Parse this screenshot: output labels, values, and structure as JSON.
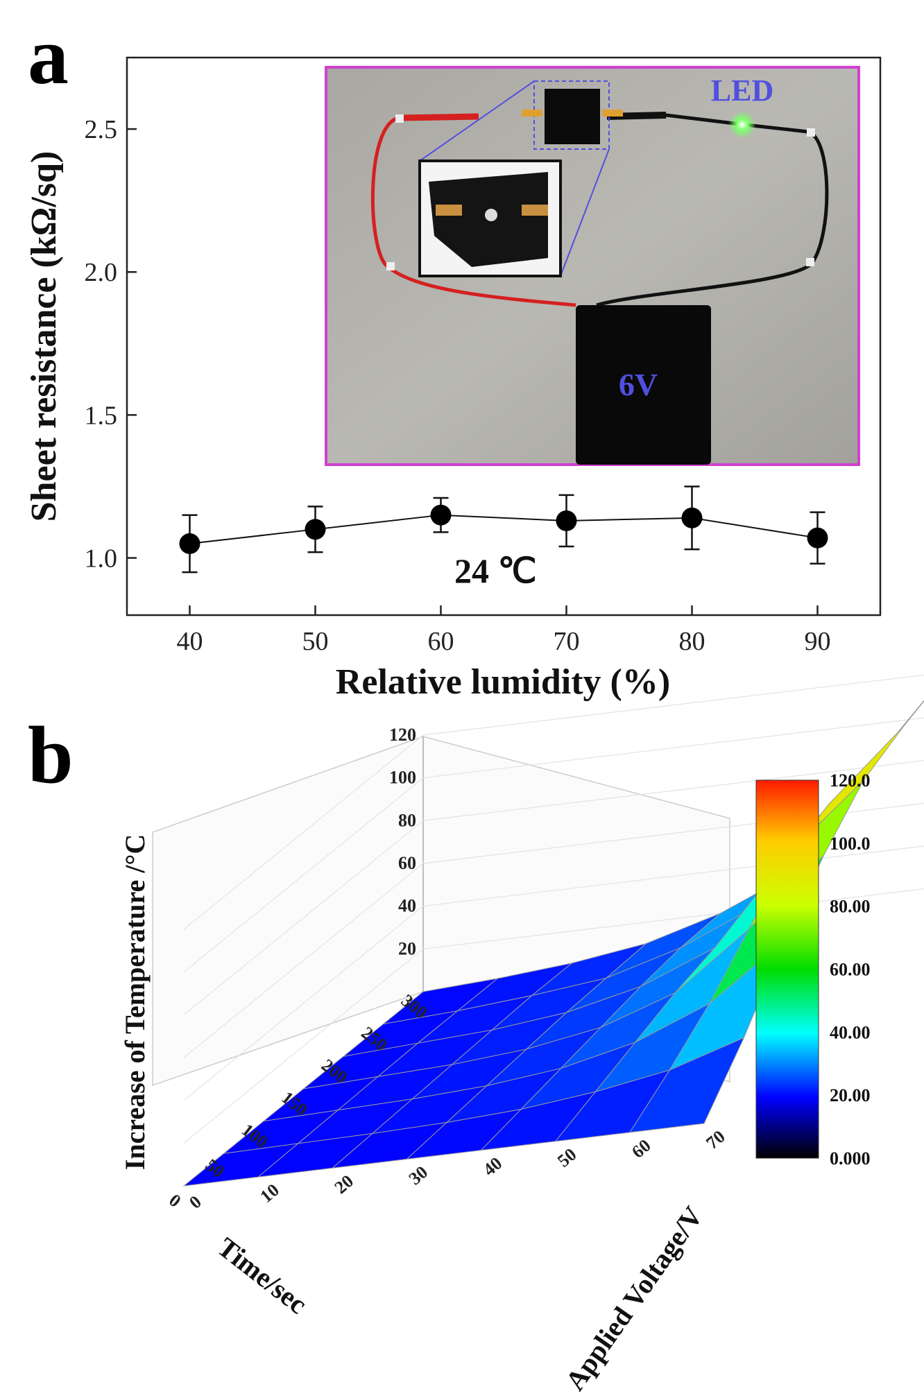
{
  "panels": {
    "a": "a",
    "b": "b"
  },
  "chart_data": [
    {
      "type": "scatter",
      "panel": "a",
      "x": [
        40,
        50,
        60,
        70,
        80,
        90
      ],
      "y": [
        1.05,
        1.1,
        1.15,
        1.13,
        1.14,
        1.07
      ],
      "y_err": [
        0.1,
        0.08,
        0.06,
        0.09,
        0.11,
        0.09
      ],
      "xlabel": "Relative lumidity (%)",
      "ylabel": "Sheet resistance (kΩ/sq)",
      "xlim": [
        35,
        95
      ],
      "ylim": [
        0.8,
        2.75
      ],
      "x_ticks": [
        "40",
        "50",
        "60",
        "70",
        "80",
        "90"
      ],
      "y_ticks": [
        "1.0",
        "1.5",
        "2.0",
        "2.5"
      ],
      "annotation": "24 ℃",
      "connected": true,
      "inset_photo": {
        "labels": {
          "led": "LED",
          "battery": "6V"
        },
        "colors": {
          "border": "#d040d0",
          "led_label": "#5050e0",
          "battery_label": "#5050e0",
          "wire_positive": "#d42020",
          "wire_negative": "#111111",
          "led_glow": "#7dff6a"
        }
      }
    },
    {
      "type": "surface",
      "panel": "b",
      "x_label": "Time/sec",
      "y_label": "Applied Voltage/V",
      "z_label": "Increase of Temperature /°C",
      "x_ticks": [
        "0",
        "50",
        "100",
        "150",
        "200",
        "250",
        "300"
      ],
      "y_ticks": [
        "0",
        "10",
        "20",
        "30",
        "40",
        "50",
        "60",
        "70"
      ],
      "z_ticks": [
        "20",
        "40",
        "60",
        "80",
        "100",
        "120"
      ],
      "z_range": [
        0,
        120
      ],
      "colorbar": {
        "ticks": [
          "120.0",
          "100.0",
          "80.00",
          "60.00",
          "40.00",
          "20.00",
          "0.000"
        ],
        "colors": [
          "#ff1a00",
          "#ffcc00",
          "#ccff00",
          "#00dd00",
          "#00ffff",
          "#0000ff",
          "#000000"
        ]
      },
      "time": [
        0,
        50,
        100,
        150,
        200,
        250,
        300
      ],
      "voltage": [
        0,
        10,
        20,
        30,
        40,
        50,
        60,
        70
      ],
      "temperature": [
        [
          0,
          0,
          0,
          0,
          0,
          0,
          0
        ],
        [
          0,
          0.5,
          1,
          1.5,
          2,
          2,
          2
        ],
        [
          0,
          1,
          2,
          3,
          4,
          5,
          5
        ],
        [
          0,
          2,
          4,
          6,
          8,
          9,
          10
        ],
        [
          0,
          4,
          8,
          12,
          16,
          19,
          20
        ],
        [
          0,
          8,
          16,
          24,
          30,
          34,
          35
        ],
        [
          0,
          14,
          30,
          50,
          70,
          78,
          80
        ],
        [
          0,
          25,
          55,
          80,
          100,
          110,
          118
        ]
      ]
    }
  ]
}
